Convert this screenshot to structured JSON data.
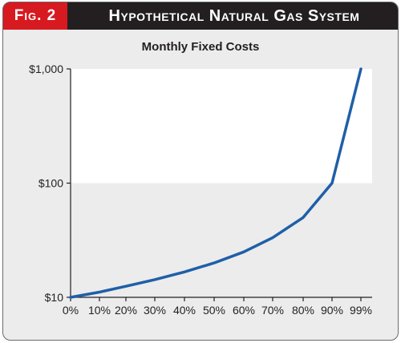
{
  "figure": {
    "label": "Fig. 2",
    "title": "Hypothetical Natural Gas System"
  },
  "colors": {
    "header": "#231f20",
    "label": "#d71920",
    "panel": "#ececec",
    "line": "#1f5fa8"
  },
  "chart_data": {
    "type": "line",
    "title": "Monthly Fixed Costs",
    "xlabel": "",
    "ylabel": "",
    "y_scale": "log",
    "ylim": [
      10,
      1000
    ],
    "y_ticks": [
      10,
      100,
      1000
    ],
    "y_tick_labels": [
      "$10",
      "$100",
      "$1,000"
    ],
    "x_ticks": [
      0,
      10,
      20,
      30,
      40,
      50,
      60,
      70,
      80,
      90,
      99
    ],
    "x_tick_labels": [
      "0%",
      "10%",
      "20%",
      "30%",
      "40%",
      "50%",
      "60%",
      "70%",
      "80%",
      "90%",
      "99%"
    ],
    "grid": false,
    "shaded_band": [
      100,
      1000
    ],
    "series": [
      {
        "x": [
          0,
          10,
          20,
          30,
          40,
          50,
          60,
          70,
          80,
          90,
          99
        ],
        "y": [
          10,
          11.1,
          12.5,
          14.3,
          16.7,
          20,
          25,
          33.3,
          50,
          100,
          1000
        ]
      }
    ]
  }
}
